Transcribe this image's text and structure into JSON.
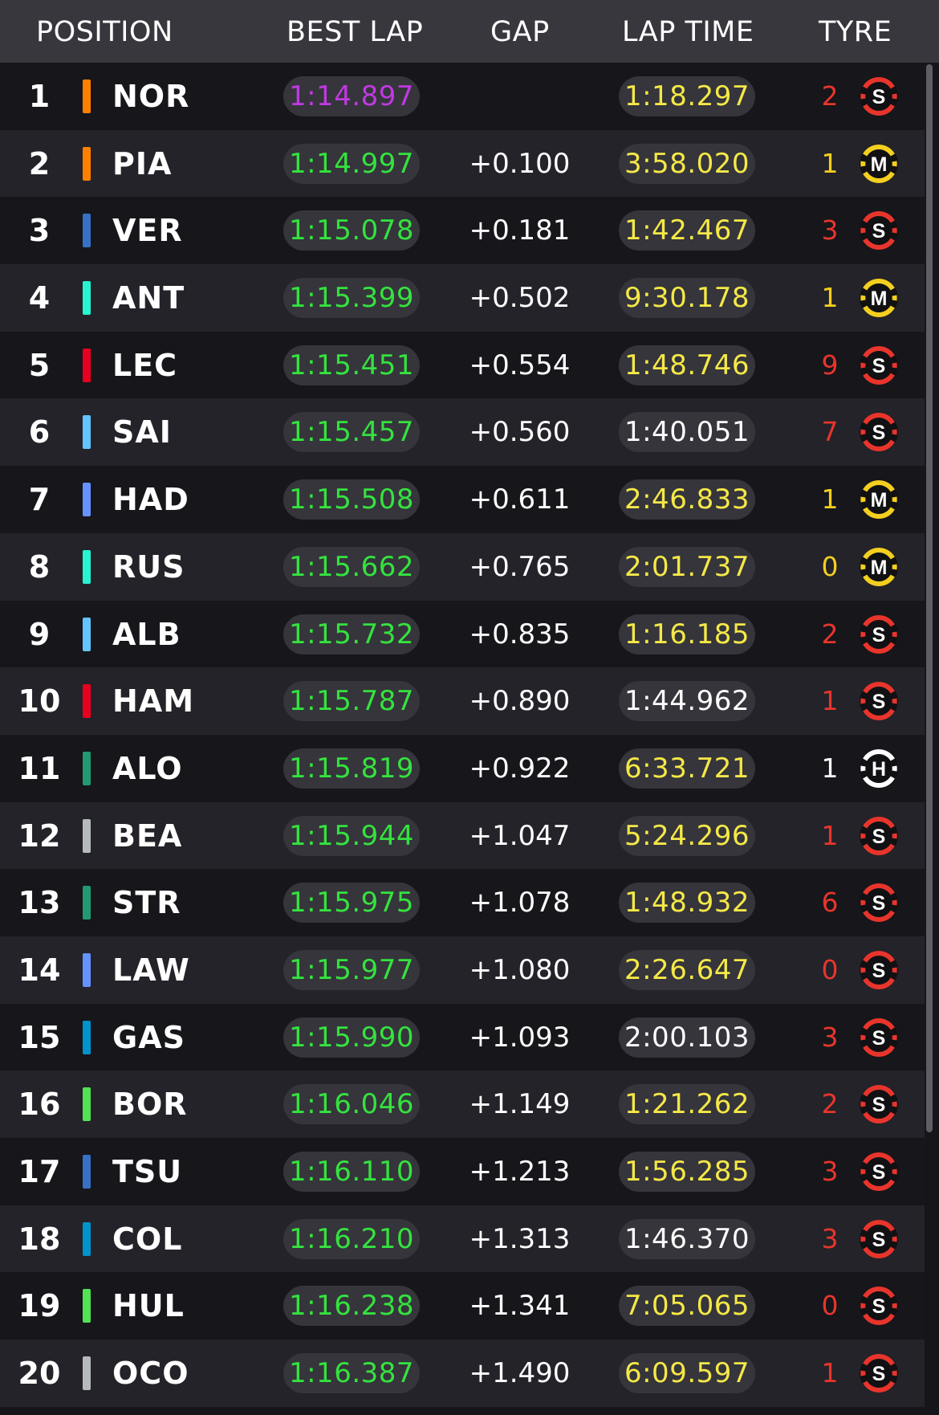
{
  "header": {
    "position": "POSITION",
    "best_lap": "BEST LAP",
    "gap": "GAP",
    "lap_time": "LAP TIME",
    "tyre": "TYRE"
  },
  "colors": {
    "fastest_purple": "#c039e0",
    "personal_best_green": "#35e23f",
    "lap_yellow": "#f5e847",
    "soft_red": "#e8352c",
    "medium_yellow": "#f4cf1f",
    "hard_white": "#ffffff"
  },
  "rows": [
    {
      "pos": "1",
      "code": "NOR",
      "team_color": "#ff8000",
      "best": "1:14.897",
      "best_color": "purple",
      "gap": "",
      "lap": "1:18.297",
      "lap_color": "yellow",
      "laps": "2",
      "tyre": "S",
      "tyre_icon": "soft-tyre-icon"
    },
    {
      "pos": "2",
      "code": "PIA",
      "team_color": "#ff8000",
      "best": "1:14.997",
      "best_color": "green",
      "gap": "+0.100",
      "lap": "3:58.020",
      "lap_color": "yellow",
      "laps": "1",
      "tyre": "M",
      "tyre_icon": "medium-tyre-icon"
    },
    {
      "pos": "3",
      "code": "VER",
      "team_color": "#3671c6",
      "best": "1:15.078",
      "best_color": "green",
      "gap": "+0.181",
      "lap": "1:42.467",
      "lap_color": "yellow",
      "laps": "3",
      "tyre": "S",
      "tyre_icon": "soft-tyre-icon"
    },
    {
      "pos": "4",
      "code": "ANT",
      "team_color": "#27f4d2",
      "best": "1:15.399",
      "best_color": "green",
      "gap": "+0.502",
      "lap": "9:30.178",
      "lap_color": "yellow",
      "laps": "1",
      "tyre": "M",
      "tyre_icon": "medium-tyre-icon"
    },
    {
      "pos": "5",
      "code": "LEC",
      "team_color": "#e80020",
      "best": "1:15.451",
      "best_color": "green",
      "gap": "+0.554",
      "lap": "1:48.746",
      "lap_color": "yellow",
      "laps": "9",
      "tyre": "S",
      "tyre_icon": "soft-tyre-icon"
    },
    {
      "pos": "6",
      "code": "SAI",
      "team_color": "#64c4ff",
      "best": "1:15.457",
      "best_color": "green",
      "gap": "+0.560",
      "lap": "1:40.051",
      "lap_color": "white",
      "laps": "7",
      "tyre": "S",
      "tyre_icon": "soft-tyre-icon"
    },
    {
      "pos": "7",
      "code": "HAD",
      "team_color": "#6692ff",
      "best": "1:15.508",
      "best_color": "green",
      "gap": "+0.611",
      "lap": "2:46.833",
      "lap_color": "yellow",
      "laps": "1",
      "tyre": "M",
      "tyre_icon": "medium-tyre-icon"
    },
    {
      "pos": "8",
      "code": "RUS",
      "team_color": "#27f4d2",
      "best": "1:15.662",
      "best_color": "green",
      "gap": "+0.765",
      "lap": "2:01.737",
      "lap_color": "yellow",
      "laps": "0",
      "tyre": "M",
      "tyre_icon": "medium-tyre-icon"
    },
    {
      "pos": "9",
      "code": "ALB",
      "team_color": "#64c4ff",
      "best": "1:15.732",
      "best_color": "green",
      "gap": "+0.835",
      "lap": "1:16.185",
      "lap_color": "yellow",
      "laps": "2",
      "tyre": "S",
      "tyre_icon": "soft-tyre-icon"
    },
    {
      "pos": "10",
      "code": "HAM",
      "team_color": "#e80020",
      "best": "1:15.787",
      "best_color": "green",
      "gap": "+0.890",
      "lap": "1:44.962",
      "lap_color": "white",
      "laps": "1",
      "tyre": "S",
      "tyre_icon": "soft-tyre-icon"
    },
    {
      "pos": "11",
      "code": "ALO",
      "team_color": "#229971",
      "best": "1:15.819",
      "best_color": "green",
      "gap": "+0.922",
      "lap": "6:33.721",
      "lap_color": "yellow",
      "laps": "1",
      "tyre": "H",
      "tyre_icon": "hard-tyre-icon"
    },
    {
      "pos": "12",
      "code": "BEA",
      "team_color": "#b6babd",
      "best": "1:15.944",
      "best_color": "green",
      "gap": "+1.047",
      "lap": "5:24.296",
      "lap_color": "yellow",
      "laps": "1",
      "tyre": "S",
      "tyre_icon": "soft-tyre-icon"
    },
    {
      "pos": "13",
      "code": "STR",
      "team_color": "#229971",
      "best": "1:15.975",
      "best_color": "green",
      "gap": "+1.078",
      "lap": "1:48.932",
      "lap_color": "yellow",
      "laps": "6",
      "tyre": "S",
      "tyre_icon": "soft-tyre-icon"
    },
    {
      "pos": "14",
      "code": "LAW",
      "team_color": "#6692ff",
      "best": "1:15.977",
      "best_color": "green",
      "gap": "+1.080",
      "lap": "2:26.647",
      "lap_color": "yellow",
      "laps": "0",
      "tyre": "S",
      "tyre_icon": "soft-tyre-icon"
    },
    {
      "pos": "15",
      "code": "GAS",
      "team_color": "#0093cc",
      "best": "1:15.990",
      "best_color": "green",
      "gap": "+1.093",
      "lap": "2:00.103",
      "lap_color": "white",
      "laps": "3",
      "tyre": "S",
      "tyre_icon": "soft-tyre-icon"
    },
    {
      "pos": "16",
      "code": "BOR",
      "team_color": "#52e252",
      "best": "1:16.046",
      "best_color": "green",
      "gap": "+1.149",
      "lap": "1:21.262",
      "lap_color": "yellow",
      "laps": "2",
      "tyre": "S",
      "tyre_icon": "soft-tyre-icon"
    },
    {
      "pos": "17",
      "code": "TSU",
      "team_color": "#3671c6",
      "best": "1:16.110",
      "best_color": "green",
      "gap": "+1.213",
      "lap": "1:56.285",
      "lap_color": "yellow",
      "laps": "3",
      "tyre": "S",
      "tyre_icon": "soft-tyre-icon"
    },
    {
      "pos": "18",
      "code": "COL",
      "team_color": "#0093cc",
      "best": "1:16.210",
      "best_color": "green",
      "gap": "+1.313",
      "lap": "1:46.370",
      "lap_color": "white",
      "laps": "3",
      "tyre": "S",
      "tyre_icon": "soft-tyre-icon"
    },
    {
      "pos": "19",
      "code": "HUL",
      "team_color": "#52e252",
      "best": "1:16.238",
      "best_color": "green",
      "gap": "+1.341",
      "lap": "7:05.065",
      "lap_color": "yellow",
      "laps": "0",
      "tyre": "S",
      "tyre_icon": "soft-tyre-icon"
    },
    {
      "pos": "20",
      "code": "OCO",
      "team_color": "#b6babd",
      "best": "1:16.387",
      "best_color": "green",
      "gap": "+1.490",
      "lap": "6:09.597",
      "lap_color": "yellow",
      "laps": "1",
      "tyre": "S",
      "tyre_icon": "soft-tyre-icon"
    }
  ]
}
